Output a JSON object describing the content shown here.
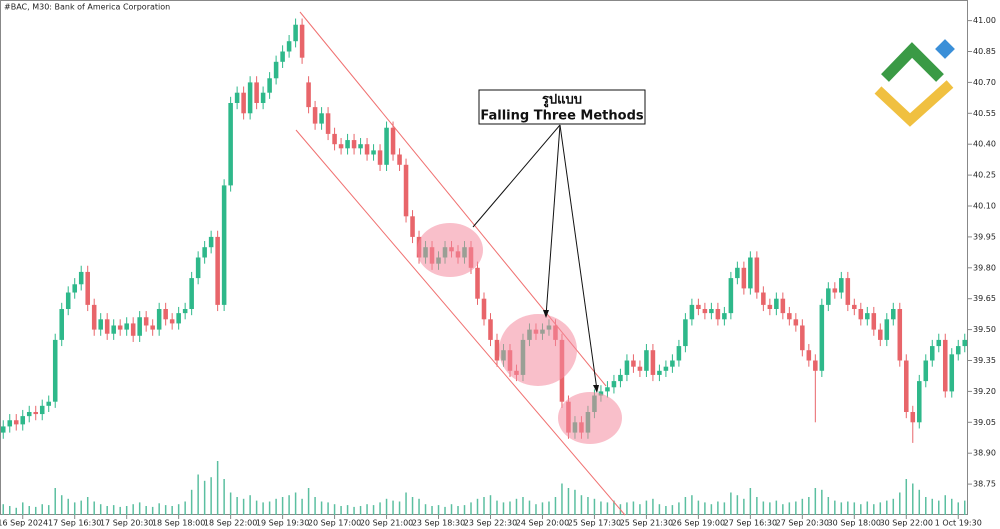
{
  "chart_data": {
    "type": "candlestick",
    "title": "#BAC, M30:  Bank of America Corporation",
    "annotation": [
      "รูปแบบ",
      "Falling Three Methods"
    ],
    "bull_color": "#2eb88a",
    "bear_color": "#e8656a",
    "volume_color": "#5bbfa0",
    "ylim": [
      38.6,
      41.1
    ],
    "yticks": [
      38.75,
      {
        "value": 38.9,
        "label": "38.90"
      },
      39.05,
      {
        "value": 39.2,
        "label": "39.20"
      },
      39.35,
      {
        "value": 39.5,
        "label": "39.50"
      },
      39.65,
      {
        "value": 39.8,
        "label": "39.80"
      },
      39.95,
      {
        "value": 40.1,
        "label": "40.10"
      },
      40.25,
      {
        "value": 40.4,
        "label": "40.40"
      },
      40.55,
      {
        "value": 40.7,
        "label": "40.70"
      },
      40.85,
      {
        "value": 41.0,
        "label": "41.00"
      }
    ],
    "xlim": [
      -0.5,
      148.5
    ],
    "xticks": [
      {
        "value": 3,
        "label": "16 Sep 2024"
      },
      {
        "value": 11,
        "label": "17 Sep 16:30"
      },
      {
        "value": 19,
        "label": "17 Sep 20:30"
      },
      {
        "value": 27,
        "label": "18 Sep 18:00"
      },
      {
        "value": 35,
        "label": "18 Sep 22:00"
      },
      {
        "value": 43,
        "label": "19 Sep 19:30"
      },
      {
        "value": 51,
        "label": "20 Sep 17:00"
      },
      {
        "value": 59,
        "label": "20 Sep 21:00"
      },
      {
        "value": 67,
        "label": "23 Sep 18:30"
      },
      {
        "value": 75,
        "label": "23 Sep 22:30"
      },
      {
        "value": 83,
        "label": "24 Sep 20:00"
      },
      {
        "value": 91,
        "label": "25 Sep 17:30"
      },
      {
        "value": 99,
        "label": "25 Sep 21:30"
      },
      {
        "value": 107,
        "label": "26 Sep 19:00"
      },
      {
        "value": 115,
        "label": "27 Sep 16:30"
      },
      {
        "value": 123,
        "label": "27 Sep 20:30"
      },
      {
        "value": 131,
        "label": "30 Sep 18:00"
      },
      {
        "value": 139,
        "label": "30 Sep 22:00"
      },
      {
        "value": 147,
        "label": "1 Oct 19:30"
      }
    ],
    "open": [
      39.0,
      39.03,
      39.06,
      39.04,
      39.08,
      39.1,
      39.09,
      39.13,
      39.15,
      39.45,
      39.6,
      39.68,
      39.72,
      39.78,
      39.62,
      39.5,
      39.55,
      39.48,
      39.52,
      39.5,
      39.53,
      39.47,
      39.56,
      39.52,
      39.5,
      39.6,
      39.55,
      39.53,
      39.58,
      39.6,
      39.75,
      39.85,
      39.9,
      39.95,
      39.62,
      40.2,
      40.6,
      40.65,
      40.55,
      40.7,
      40.6,
      40.65,
      40.72,
      40.8,
      40.85,
      40.9,
      40.98,
      40.7,
      40.58,
      40.5,
      40.55,
      40.45,
      40.4,
      40.38,
      40.42,
      40.38,
      40.4,
      40.35,
      40.37,
      40.3,
      40.48,
      40.35,
      40.3,
      40.05,
      39.95,
      39.85,
      39.9,
      39.82,
      39.85,
      39.9,
      39.88,
      39.85,
      39.9,
      39.8,
      39.65,
      39.55,
      39.45,
      39.35,
      39.4,
      39.3,
      39.28,
      39.45,
      39.5,
      39.48,
      39.5,
      39.52,
      39.45,
      39.15,
      39.0,
      39.05,
      39.0,
      39.1,
      39.18,
      39.2,
      39.22,
      39.25,
      39.28,
      39.35,
      39.32,
      39.3,
      39.4,
      39.28,
      39.3,
      39.32,
      39.35,
      39.42,
      39.55,
      39.62,
      39.6,
      39.58,
      39.6,
      39.55,
      39.58,
      39.75,
      39.8,
      39.7,
      39.85,
      39.68,
      39.62,
      39.6,
      39.65,
      39.58,
      39.55,
      39.52,
      39.4,
      39.35,
      39.3,
      39.62,
      39.7,
      39.68,
      39.75,
      39.62,
      39.6,
      39.55,
      39.58,
      39.5,
      39.45,
      39.55,
      39.6,
      39.35,
      39.1,
      39.05,
      39.25,
      39.35,
      39.42,
      39.45,
      39.2,
      39.38,
      39.42
    ],
    "high": [
      39.06,
      39.09,
      39.09,
      39.11,
      39.13,
      39.13,
      39.16,
      39.18,
      39.48,
      39.63,
      39.71,
      39.75,
      39.81,
      39.81,
      39.65,
      39.58,
      39.58,
      39.55,
      39.55,
      39.56,
      39.56,
      39.59,
      39.59,
      39.55,
      39.63,
      39.63,
      39.58,
      39.61,
      39.63,
      39.78,
      39.88,
      39.93,
      39.98,
      39.98,
      40.23,
      40.63,
      40.68,
      40.68,
      40.73,
      40.73,
      40.68,
      40.75,
      40.83,
      40.88,
      40.93,
      41.01,
      41.01,
      40.73,
      40.61,
      40.58,
      40.58,
      40.48,
      40.43,
      40.45,
      40.45,
      40.43,
      40.43,
      40.4,
      40.4,
      40.51,
      40.51,
      40.38,
      40.33,
      40.08,
      39.98,
      39.93,
      39.93,
      39.88,
      39.93,
      39.93,
      39.91,
      39.93,
      39.93,
      39.83,
      39.68,
      39.58,
      39.48,
      39.43,
      39.43,
      39.33,
      39.48,
      39.53,
      39.53,
      39.53,
      39.55,
      39.55,
      39.48,
      39.18,
      39.08,
      39.08,
      39.13,
      39.21,
      39.23,
      39.25,
      39.28,
      39.31,
      39.38,
      39.38,
      39.35,
      39.43,
      39.43,
      39.33,
      39.35,
      39.38,
      39.45,
      39.58,
      39.65,
      39.65,
      39.63,
      39.63,
      39.63,
      39.61,
      39.78,
      39.83,
      39.83,
      39.88,
      39.88,
      39.71,
      39.65,
      39.68,
      39.68,
      39.61,
      39.58,
      39.55,
      39.43,
      39.38,
      39.65,
      39.73,
      39.73,
      39.78,
      39.78,
      39.65,
      39.63,
      39.61,
      39.61,
      39.53,
      39.58,
      39.63,
      39.63,
      39.38,
      39.13,
      39.28,
      39.38,
      39.45,
      39.48,
      39.48,
      39.41,
      39.45,
      39.48
    ],
    "low": [
      38.97,
      39.0,
      39.01,
      39.01,
      39.05,
      39.06,
      39.06,
      39.1,
      39.12,
      39.42,
      39.57,
      39.65,
      39.69,
      39.59,
      39.47,
      39.47,
      39.45,
      39.45,
      39.47,
      39.47,
      39.44,
      39.44,
      39.49,
      39.47,
      39.47,
      39.52,
      39.5,
      39.5,
      39.55,
      39.57,
      39.72,
      39.82,
      39.87,
      39.59,
      39.59,
      40.17,
      40.57,
      40.52,
      40.52,
      40.57,
      40.57,
      40.62,
      40.69,
      40.77,
      40.82,
      40.87,
      40.79,
      40.55,
      40.47,
      40.47,
      40.42,
      40.37,
      40.35,
      40.35,
      40.35,
      40.35,
      40.32,
      40.32,
      40.27,
      40.27,
      40.32,
      40.27,
      40.02,
      39.92,
      39.82,
      39.82,
      39.79,
      39.79,
      39.82,
      39.85,
      39.82,
      39.82,
      39.77,
      39.62,
      39.52,
      39.42,
      39.32,
      39.32,
      39.27,
      39.25,
      39.25,
      39.42,
      39.45,
      39.45,
      39.47,
      39.42,
      39.12,
      38.97,
      38.97,
      38.97,
      38.97,
      39.07,
      39.15,
      39.17,
      39.19,
      39.22,
      39.25,
      39.29,
      39.27,
      39.27,
      39.25,
      39.25,
      39.27,
      39.29,
      39.32,
      39.39,
      39.52,
      39.57,
      39.55,
      39.55,
      39.52,
      39.52,
      39.55,
      39.72,
      39.67,
      39.67,
      39.65,
      39.59,
      39.57,
      39.57,
      39.55,
      39.52,
      39.49,
      39.37,
      39.32,
      39.05,
      39.27,
      39.59,
      39.65,
      39.65,
      39.59,
      39.57,
      39.52,
      39.52,
      39.47,
      39.42,
      39.42,
      39.52,
      39.32,
      39.07,
      38.95,
      39.02,
      39.22,
      39.32,
      39.39,
      39.17,
      39.17,
      39.35,
      39.39
    ],
    "close": [
      39.03,
      39.06,
      39.04,
      39.08,
      39.1,
      39.09,
      39.13,
      39.15,
      39.45,
      39.6,
      39.68,
      39.72,
      39.78,
      39.62,
      39.5,
      39.55,
      39.48,
      39.52,
      39.5,
      39.53,
      39.47,
      39.56,
      39.52,
      39.5,
      39.6,
      39.55,
      39.53,
      39.58,
      39.6,
      39.75,
      39.85,
      39.9,
      39.95,
      39.62,
      40.2,
      40.6,
      40.65,
      40.55,
      40.7,
      40.6,
      40.65,
      40.72,
      40.8,
      40.85,
      40.9,
      40.98,
      40.82,
      40.58,
      40.5,
      40.55,
      40.45,
      40.4,
      40.38,
      40.42,
      40.38,
      40.4,
      40.35,
      40.37,
      40.3,
      40.48,
      40.35,
      40.3,
      40.05,
      39.95,
      39.85,
      39.9,
      39.82,
      39.85,
      39.9,
      39.88,
      39.85,
      39.9,
      39.8,
      39.65,
      39.55,
      39.45,
      39.35,
      39.4,
      39.3,
      39.28,
      39.45,
      39.5,
      39.48,
      39.5,
      39.52,
      39.45,
      39.15,
      39.0,
      39.05,
      39.0,
      39.1,
      39.18,
      39.2,
      39.22,
      39.25,
      39.28,
      39.35,
      39.32,
      39.3,
      39.4,
      39.28,
      39.3,
      39.32,
      39.35,
      39.42,
      39.55,
      39.62,
      39.6,
      39.58,
      39.6,
      39.55,
      39.58,
      39.75,
      39.8,
      39.7,
      39.85,
      39.68,
      39.62,
      39.6,
      39.65,
      39.58,
      39.55,
      39.52,
      39.4,
      39.35,
      39.3,
      39.62,
      39.7,
      39.68,
      39.75,
      39.62,
      39.6,
      39.55,
      39.58,
      39.5,
      39.45,
      39.55,
      39.6,
      39.35,
      39.1,
      39.05,
      39.25,
      39.35,
      39.42,
      39.45,
      39.2,
      39.38,
      39.42,
      39.45
    ],
    "volume": [
      12,
      10,
      8,
      14,
      10,
      9,
      12,
      11,
      30,
      22,
      18,
      14,
      16,
      20,
      15,
      12,
      10,
      11,
      9,
      10,
      12,
      14,
      10,
      9,
      13,
      11,
      10,
      12,
      15,
      28,
      45,
      38,
      42,
      60,
      40,
      25,
      20,
      18,
      22,
      16,
      14,
      15,
      18,
      20,
      22,
      25,
      18,
      30,
      20,
      15,
      14,
      12,
      10,
      11,
      9,
      10,
      12,
      11,
      14,
      18,
      16,
      15,
      25,
      20,
      18,
      12,
      10,
      11,
      9,
      12,
      10,
      11,
      14,
      18,
      20,
      22,
      16,
      14,
      15,
      18,
      20,
      16,
      12,
      14,
      15,
      20,
      35,
      30,
      28,
      22,
      20,
      18,
      15,
      14,
      16,
      12,
      14,
      15,
      12,
      16,
      18,
      12,
      10,
      11,
      14,
      20,
      22,
      16,
      14,
      12,
      15,
      14,
      25,
      22,
      18,
      30,
      20,
      15,
      14,
      16,
      12,
      14,
      15,
      18,
      20,
      30,
      28,
      20,
      16,
      14,
      15,
      14,
      12,
      15,
      12,
      14,
      16,
      18,
      25,
      40,
      35,
      28,
      20,
      18,
      16,
      22,
      18,
      14,
      16
    ]
  }
}
